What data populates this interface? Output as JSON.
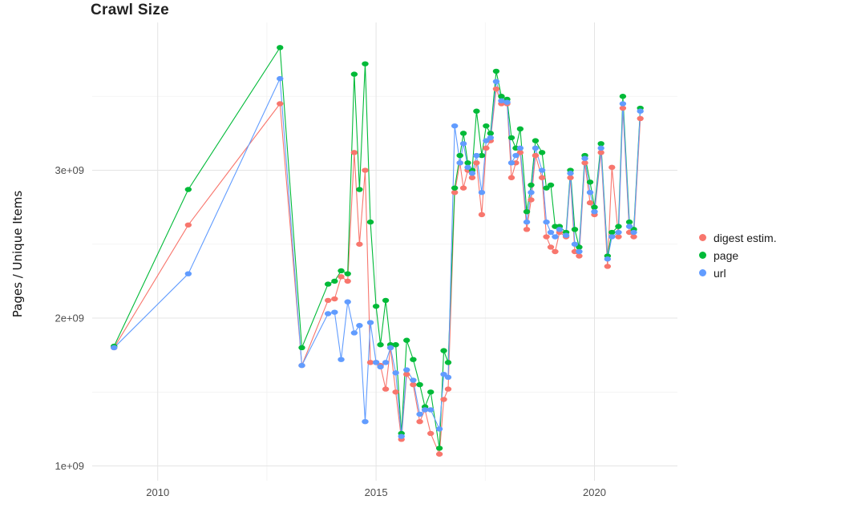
{
  "chart_data": {
    "type": "line",
    "title": "Crawl Size",
    "xlabel": "",
    "ylabel": "Pages / Unique Items",
    "x_domain": [
      2008.5,
      2021.9
    ],
    "y_domain_e9": [
      0.9,
      4.0
    ],
    "x_ticks": [
      {
        "value": 2010,
        "label": "2010"
      },
      {
        "value": 2015,
        "label": "2015"
      },
      {
        "value": 2020,
        "label": "2020"
      }
    ],
    "y_ticks": [
      {
        "value": 1,
        "label": "1e+09"
      },
      {
        "value": 2,
        "label": "2e+09"
      },
      {
        "value": 3,
        "label": "3e+09"
      }
    ],
    "x_minor": [
      2012.5,
      2017.5
    ],
    "y_minor": [
      1.5,
      2.5,
      3.5
    ],
    "grid": true,
    "legend_position": "right",
    "x": [
      2009.0,
      2010.7,
      2012.8,
      2013.3,
      2013.9,
      2014.05,
      2014.2,
      2014.35,
      2014.5,
      2014.62,
      2014.75,
      2014.87,
      2015.0,
      2015.1,
      2015.22,
      2015.33,
      2015.45,
      2015.58,
      2015.7,
      2015.85,
      2016.0,
      2016.12,
      2016.25,
      2016.45,
      2016.55,
      2016.65,
      2016.8,
      2016.92,
      2017.0,
      2017.1,
      2017.2,
      2017.3,
      2017.42,
      2017.52,
      2017.62,
      2017.75,
      2017.87,
      2018.0,
      2018.1,
      2018.2,
      2018.3,
      2018.45,
      2018.55,
      2018.65,
      2018.8,
      2018.9,
      2019.0,
      2019.1,
      2019.2,
      2019.35,
      2019.45,
      2019.55,
      2019.65,
      2019.78,
      2019.9,
      2020.0,
      2020.15,
      2020.3,
      2020.4,
      2020.55,
      2020.65,
      2020.8,
      2020.9,
      2021.05
    ],
    "y_unit": "1e9 pages",
    "series": [
      {
        "name": "digest estim.",
        "color": "#F8766D",
        "values": [
          1.8,
          2.63,
          3.45,
          1.68,
          2.12,
          2.13,
          2.28,
          2.25,
          3.12,
          2.5,
          3.0,
          1.7,
          1.7,
          1.68,
          1.52,
          1.8,
          1.5,
          1.18,
          1.62,
          1.55,
          1.3,
          1.38,
          1.22,
          1.08,
          1.45,
          1.52,
          2.85,
          3.05,
          2.88,
          3.0,
          2.95,
          3.05,
          2.7,
          3.15,
          3.2,
          3.55,
          3.45,
          3.45,
          2.95,
          3.05,
          3.12,
          2.6,
          2.8,
          3.1,
          2.95,
          2.55,
          2.48,
          2.45,
          2.58,
          2.55,
          2.95,
          2.45,
          2.42,
          3.05,
          2.78,
          2.7,
          3.12,
          2.35,
          3.02,
          2.55,
          3.42,
          2.58,
          2.55,
          3.35
        ]
      },
      {
        "name": "page",
        "color": "#00BA38",
        "values": [
          1.81,
          2.87,
          3.83,
          1.8,
          2.23,
          2.25,
          2.32,
          2.3,
          3.65,
          2.87,
          3.72,
          2.65,
          2.08,
          1.82,
          2.12,
          1.82,
          1.82,
          1.22,
          1.85,
          1.72,
          1.55,
          1.4,
          1.5,
          1.12,
          1.78,
          1.7,
          2.88,
          3.1,
          3.25,
          3.05,
          3.0,
          3.4,
          3.1,
          3.3,
          3.25,
          3.67,
          3.5,
          3.48,
          3.22,
          3.15,
          3.28,
          2.72,
          2.9,
          3.2,
          3.12,
          2.88,
          2.9,
          2.62,
          2.62,
          2.58,
          3.0,
          2.6,
          2.48,
          3.1,
          2.92,
          2.75,
          3.18,
          2.42,
          2.58,
          2.62,
          3.5,
          2.65,
          2.6,
          3.42
        ]
      },
      {
        "name": "url",
        "color": "#619CFF",
        "values": [
          1.8,
          2.3,
          3.62,
          1.68,
          2.03,
          2.04,
          1.72,
          2.11,
          1.9,
          1.95,
          1.3,
          1.97,
          1.7,
          1.67,
          1.7,
          1.8,
          1.63,
          1.2,
          1.65,
          1.58,
          1.35,
          1.38,
          1.38,
          1.25,
          1.62,
          1.6,
          3.3,
          3.05,
          3.18,
          3.02,
          2.98,
          3.1,
          2.85,
          3.2,
          3.22,
          3.6,
          3.47,
          3.46,
          3.05,
          3.1,
          3.15,
          2.65,
          2.85,
          3.15,
          3.0,
          2.65,
          2.58,
          2.55,
          2.6,
          2.56,
          2.98,
          2.5,
          2.45,
          3.08,
          2.85,
          2.72,
          3.15,
          2.4,
          2.55,
          2.58,
          3.45,
          2.62,
          2.58,
          3.4
        ]
      }
    ]
  }
}
